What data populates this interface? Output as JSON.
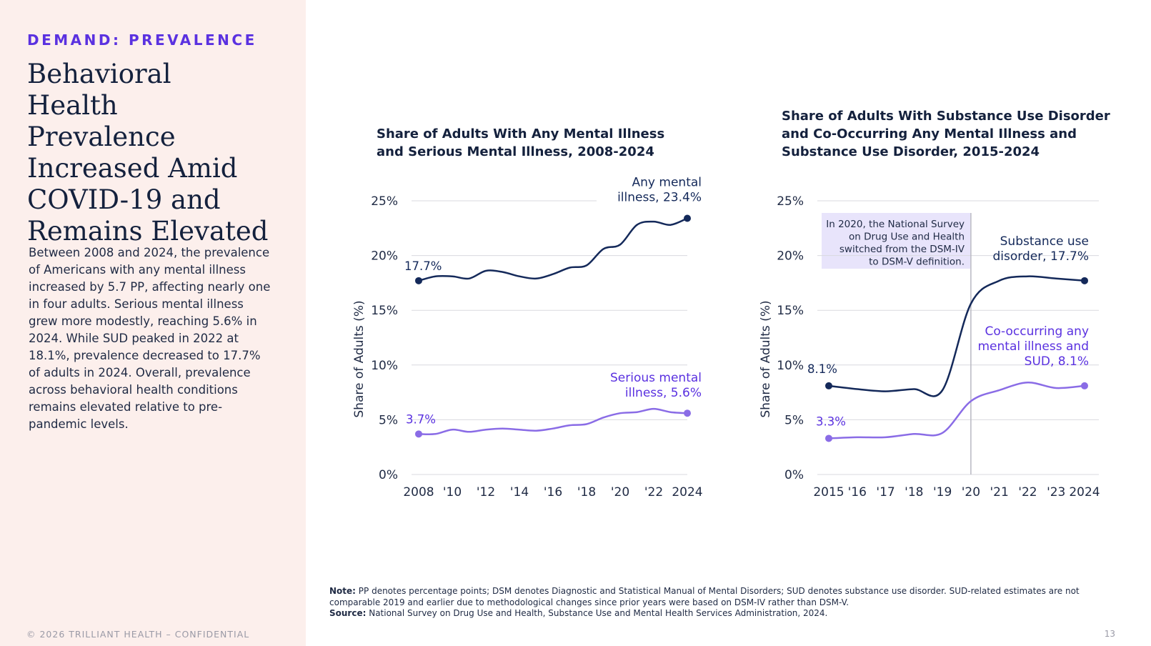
{
  "sidebar": {
    "eyebrow": "DEMAND: PREVALENCE",
    "headline": "Behavioral Health Prevalence Increased Amid COVID-19 and Remains Elevated",
    "body": "Between 2008 and 2024, the prevalence of Americans with any mental illness increased by 5.7 PP, affecting nearly one in four adults. Serious mental illness grew more modestly, reaching 5.6% in 2024. While SUD peaked in 2022 at 18.1%, prevalence decreased to 17.7% of adults in 2024. Overall, prevalence across behavioral health conditions remains elevated relative to pre-pandemic levels.",
    "copyright": "© 2026 TRILLIANT HEALTH – CONFIDENTIAL"
  },
  "page_number": "13",
  "footnote": {
    "note_label": "Note:",
    "note_text": " PP denotes percentage points; DSM denotes Diagnostic and Statistical Manual of Mental Disorders; SUD denotes substance use disorder. SUD-related estimates are not comparable 2019 and earlier due to methodological changes since prior years were based on DSM-IV rather than DSM-V.",
    "source_label": "Source:",
    "source_text": " National Survey on Drug Use and Health, Substance Use and Mental Health Services Administration, 2024."
  },
  "colors": {
    "navy": "#14295a",
    "purple": "#8a6ce6",
    "purple_text": "#5a31e0",
    "grid": "#d9d9df",
    "annotation_bg": "#e8e4fb"
  },
  "chart_data": [
    {
      "type": "line",
      "title": "Share of Adults With Any Mental Illness and Serious Mental Illness, 2008-2024",
      "ylabel": "Share of Adults (%)",
      "xlabel": "",
      "ylim": [
        0,
        25
      ],
      "xlim": [
        2008,
        2024
      ],
      "yticks": [
        0,
        5,
        10,
        15,
        20,
        25
      ],
      "ytick_labels": [
        "0%",
        "5%",
        "10%",
        "15%",
        "20%",
        "25%"
      ],
      "xticks": [
        2008,
        2010,
        2012,
        2014,
        2016,
        2018,
        2020,
        2022,
        2024
      ],
      "xtick_labels": [
        "2008",
        "'10",
        "'12",
        "'14",
        "'16",
        "'18",
        "'20",
        "'22",
        "2024"
      ],
      "grid": true,
      "series": [
        {
          "name": "Any mental illness",
          "color": "#14295a",
          "x": [
            2008,
            2009,
            2010,
            2011,
            2012,
            2013,
            2014,
            2015,
            2016,
            2017,
            2018,
            2019,
            2020,
            2021,
            2022,
            2023,
            2024
          ],
          "values": [
            17.7,
            18.1,
            18.1,
            17.9,
            18.6,
            18.5,
            18.1,
            17.9,
            18.3,
            18.9,
            19.1,
            20.6,
            21.0,
            22.8,
            23.1,
            22.8,
            23.4
          ],
          "start_label": "17.7%",
          "end_label": [
            "Any mental",
            "illness, 23.4%"
          ]
        },
        {
          "name": "Serious mental illness",
          "color": "#8a6ce6",
          "x": [
            2008,
            2009,
            2010,
            2011,
            2012,
            2013,
            2014,
            2015,
            2016,
            2017,
            2018,
            2019,
            2020,
            2021,
            2022,
            2023,
            2024
          ],
          "values": [
            3.7,
            3.7,
            4.1,
            3.9,
            4.1,
            4.2,
            4.1,
            4.0,
            4.2,
            4.5,
            4.6,
            5.2,
            5.6,
            5.7,
            6.0,
            5.7,
            5.6
          ],
          "start_label": "3.7%",
          "end_label": [
            "Serious mental",
            "illness, 5.6%"
          ]
        }
      ]
    },
    {
      "type": "line",
      "title": "Share of Adults With Substance Use Disorder and Co-Occurring Any Mental Illness and Substance Use Disorder, 2015-2024",
      "ylabel": "Share of Adults (%)",
      "xlabel": "",
      "ylim": [
        0,
        25
      ],
      "xlim": [
        2015,
        2024
      ],
      "yticks": [
        0,
        5,
        10,
        15,
        20,
        25
      ],
      "ytick_labels": [
        "0%",
        "5%",
        "10%",
        "15%",
        "20%",
        "25%"
      ],
      "xticks": [
        2015,
        2016,
        2017,
        2018,
        2019,
        2020,
        2021,
        2022,
        2023,
        2024
      ],
      "xtick_labels": [
        "2015",
        "'16",
        "'17",
        "'18",
        "'19",
        "'20",
        "'21",
        "'22",
        "'23",
        "2024"
      ],
      "grid": true,
      "annotation": {
        "x": 2020,
        "lines": [
          "In 2020, the National Survey",
          "on Drug Use and Health",
          "switched from the DSM-IV",
          "to DSM-V definition."
        ]
      },
      "series": [
        {
          "name": "Substance use disorder",
          "color": "#14295a",
          "x": [
            2015,
            2016,
            2017,
            2018,
            2019,
            2020,
            2021,
            2022,
            2023,
            2024
          ],
          "values": [
            8.1,
            7.8,
            7.6,
            7.8,
            7.7,
            15.6,
            17.7,
            18.1,
            17.9,
            17.7
          ],
          "start_label": "8.1%",
          "end_label": [
            "Substance use",
            "disorder, 17.7%"
          ]
        },
        {
          "name": "Co-occurring any mental illness and SUD",
          "color": "#8a6ce6",
          "x": [
            2015,
            2016,
            2017,
            2018,
            2019,
            2020,
            2021,
            2022,
            2023,
            2024
          ],
          "values": [
            3.3,
            3.4,
            3.4,
            3.7,
            3.8,
            6.7,
            7.7,
            8.4,
            7.9,
            8.1
          ],
          "start_label": "3.3%",
          "end_label": [
            "Co-occurring any",
            "mental illness and",
            "SUD, 8.1%"
          ]
        }
      ]
    }
  ]
}
